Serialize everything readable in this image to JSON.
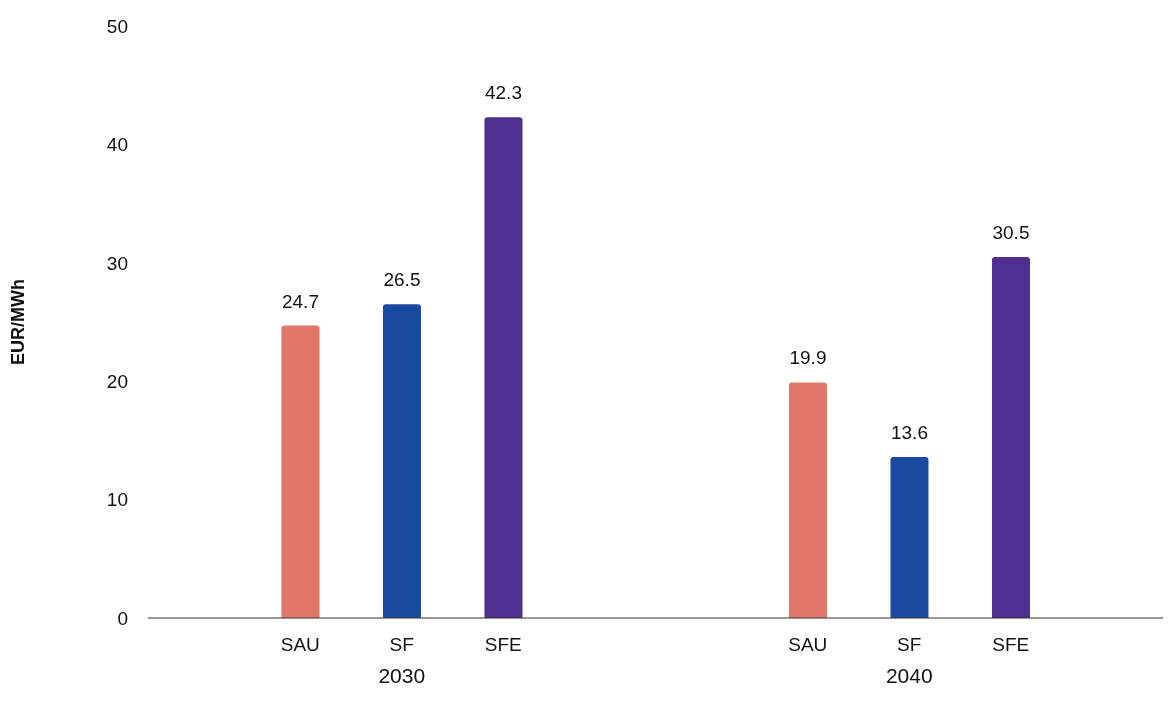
{
  "chart_data": {
    "type": "bar",
    "ylabel": "EUR/MWh",
    "categories": [
      null,
      "SAU",
      "SF",
      "SFE",
      null,
      null,
      "SAU",
      "SF",
      "SFE",
      null
    ],
    "values": [
      null,
      24.7,
      26.5,
      42.3,
      null,
      null,
      19.9,
      13.6,
      30.5,
      null
    ],
    "colors": [
      "#e07768",
      "#e07768",
      "#1a4aa0",
      "#4e2e8e",
      "#e07768",
      "#e07768",
      "#e07768",
      "#1a4aa0",
      "#4e2e8e",
      "#e07768"
    ],
    "annotations": [
      "2030",
      "2040"
    ],
    "ylim": [
      0,
      50
    ],
    "yticks": [
      0,
      10,
      20,
      30,
      40,
      50
    ],
    "grid": false,
    "data_labels": true
  }
}
